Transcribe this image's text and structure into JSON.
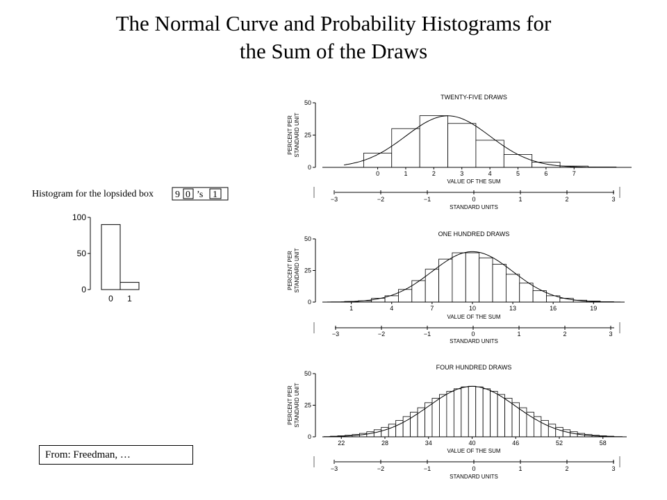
{
  "slide": {
    "title_line1": "The Normal Curve and Probability Histograms for",
    "title_line2": "the Sum of the Draws",
    "credit": "From: Freedman, …"
  },
  "colors": {
    "ink": "#000000",
    "bar_fill": "#ffffff",
    "background": "#ffffff"
  },
  "chart_data": [
    {
      "id": "lopsided",
      "type": "bar",
      "title_prefix": "Histogram for the lopsided box",
      "box_parts": [
        "9",
        "0",
        "’s",
        "1"
      ],
      "categories": [
        "0",
        "1"
      ],
      "values": [
        90,
        10
      ],
      "yticks": [
        "0",
        "50",
        "100"
      ],
      "ylim": [
        0,
        100
      ]
    },
    {
      "id": "twenty-five",
      "type": "bar",
      "title": "TWENTY-FIVE DRAWS",
      "ylabel_line1": "PERCENT PER",
      "ylabel_line2": "STANDARD UNIT",
      "xlabel": "VALUE OF THE SUM",
      "su_label": "STANDARD UNITS",
      "yticks": [
        "0",
        "25",
        "50"
      ],
      "ylim": [
        0,
        50
      ],
      "mean": 2.5,
      "sd": 1.5,
      "sum_ticks": [
        "0",
        "1",
        "2",
        "3",
        "4",
        "5",
        "6",
        "7"
      ],
      "su_ticks": [
        "−3",
        "−2",
        "−1",
        "0",
        "1",
        "2",
        "3"
      ],
      "x": [
        0,
        1,
        2,
        3,
        4,
        5,
        6,
        7,
        8
      ],
      "values": [
        11,
        30,
        40,
        34,
        21,
        10,
        4,
        1,
        0.3
      ]
    },
    {
      "id": "one-hundred",
      "type": "bar",
      "title": "ONE HUNDRED DRAWS",
      "ylabel_line1": "PERCENT PER",
      "ylabel_line2": "STANDARD UNIT",
      "xlabel": "VALUE OF THE SUM",
      "su_label": "STANDARD UNITS",
      "yticks": [
        "0",
        "25",
        "50"
      ],
      "ylim": [
        0,
        50
      ],
      "mean": 10,
      "sd": 3,
      "sum_ticks": [
        "1",
        "4",
        "7",
        "10",
        "13",
        "16",
        "19"
      ],
      "su_ticks": [
        "−3",
        "−2",
        "−1",
        "0",
        "1",
        "2",
        "3"
      ],
      "x": [
        1,
        2,
        3,
        4,
        5,
        6,
        7,
        8,
        9,
        10,
        11,
        12,
        13,
        14,
        15,
        16,
        17,
        18,
        19,
        20
      ],
      "values": [
        0.5,
        1,
        3,
        5,
        10,
        17,
        26,
        34,
        39,
        39,
        35,
        30,
        22,
        15,
        9,
        5,
        3,
        1.5,
        0.8,
        0.3
      ]
    },
    {
      "id": "four-hundred",
      "type": "bar",
      "title": "FOUR HUNDRED DRAWS",
      "ylabel_line1": "PERCENT PER",
      "ylabel_line2": "STANDARD UNIT",
      "xlabel": "VALUE OF THE SUM",
      "su_label": "STANDARD UNITS",
      "yticks": [
        "0",
        "25",
        "50"
      ],
      "ylim": [
        0,
        50
      ],
      "mean": 40,
      "sd": 6,
      "sum_ticks": [
        "22",
        "28",
        "34",
        "40",
        "46",
        "52",
        "58"
      ],
      "su_ticks": [
        "−3",
        "−2",
        "−1",
        "0",
        "1",
        "2",
        "3"
      ],
      "x": [
        21,
        22,
        23,
        24,
        25,
        26,
        27,
        28,
        29,
        30,
        31,
        32,
        33,
        34,
        35,
        36,
        37,
        38,
        39,
        40,
        41,
        42,
        43,
        44,
        45,
        46,
        47,
        48,
        49,
        50,
        51,
        52,
        53,
        54,
        55,
        56,
        57,
        58,
        59
      ],
      "values": [
        0.5,
        0.8,
        1.2,
        1.8,
        2.7,
        4,
        5.6,
        7.5,
        10,
        13,
        16,
        19.5,
        23,
        27,
        30.5,
        33.5,
        36,
        38,
        39.5,
        40,
        39.5,
        38,
        36,
        33.5,
        30.5,
        27,
        23,
        19.5,
        16,
        13,
        10,
        7.5,
        5.6,
        4,
        2.7,
        1.8,
        1.2,
        0.8,
        0.5
      ]
    }
  ]
}
